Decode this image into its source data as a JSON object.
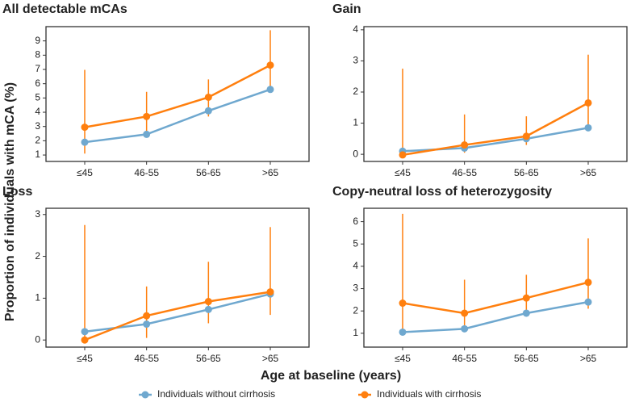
{
  "ylabel": "Proportion of individuals with mCA (%)",
  "xlabel": "Age at baseline (years)",
  "chart_data": [
    {
      "type": "line",
      "title": "All detectable mCAs",
      "categories": [
        "≤45",
        "46-55",
        "56-65",
        ">65"
      ],
      "ylim": [
        0.55,
        10
      ],
      "yticks": [
        1,
        2,
        3,
        4,
        5,
        6,
        7,
        8,
        9
      ],
      "series": [
        {
          "name": "Individuals without cirrhosis",
          "color": "#6fa8cf",
          "values": [
            1.9,
            2.45,
            4.1,
            5.6
          ]
        },
        {
          "name": "Individuals with cirrhosis",
          "color": "#ff7f0e",
          "values": [
            2.95,
            3.7,
            5.05,
            7.3
          ],
          "lower": [
            1.1,
            2.5,
            3.7,
            5.5
          ],
          "upper": [
            6.97,
            5.43,
            6.3,
            9.75
          ]
        }
      ]
    },
    {
      "type": "line",
      "title": "Gain",
      "categories": [
        "≤45",
        "46-55",
        "56-65",
        ">65"
      ],
      "ylim": [
        -0.23,
        4.1
      ],
      "yticks": [
        0,
        1,
        2,
        3,
        4
      ],
      "series": [
        {
          "color": "#6fa8cf",
          "values": [
            0.1,
            0.2,
            0.5,
            0.85
          ]
        },
        {
          "color": "#ff7f0e",
          "values": [
            -0.02,
            0.3,
            0.58,
            1.65
          ],
          "lower": [
            0,
            0.05,
            0.3,
            0.85
          ],
          "upper": [
            2.75,
            1.28,
            1.22,
            3.2
          ]
        }
      ]
    },
    {
      "type": "line",
      "title": "Loss",
      "categories": [
        "≤45",
        "46-55",
        "56-65",
        ">65"
      ],
      "ylim": [
        -0.17,
        3.15
      ],
      "yticks": [
        0,
        1,
        2,
        3
      ],
      "series": [
        {
          "color": "#6fa8cf",
          "values": [
            0.2,
            0.38,
            0.73,
            1.1
          ]
        },
        {
          "color": "#ff7f0e",
          "values": [
            0,
            0.58,
            0.92,
            1.15
          ],
          "lower": [
            0,
            0.05,
            0.4,
            0.6
          ],
          "upper": [
            2.75,
            1.28,
            1.87,
            2.7
          ]
        }
      ]
    },
    {
      "type": "line",
      "title": "Copy-neutral loss of heterozygosity",
      "categories": [
        "≤45",
        "46-55",
        "56-65",
        ">65"
      ],
      "ylim": [
        0.38,
        6.6
      ],
      "yticks": [
        1,
        2,
        3,
        4,
        5,
        6
      ],
      "series": [
        {
          "color": "#6fa8cf",
          "values": [
            1.05,
            1.2,
            1.9,
            2.4
          ]
        },
        {
          "color": "#ff7f0e",
          "values": [
            2.35,
            1.9,
            2.58,
            3.28
          ],
          "lower": [
            1.05,
            1.2,
            1.95,
            2.1
          ],
          "upper": [
            6.35,
            3.4,
            3.62,
            5.25
          ]
        }
      ]
    }
  ]
}
